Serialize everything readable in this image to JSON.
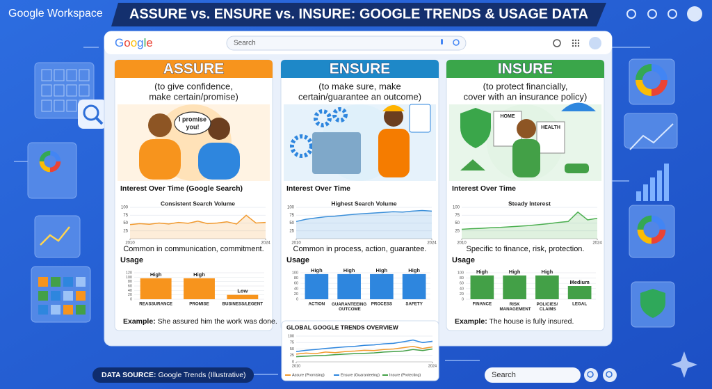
{
  "header": {
    "brand": "Google Workspace",
    "title": "ASSURE vs. ENSURE vs. INSURE: GOOGLE TRENDS & USAGE DATA"
  },
  "browser": {
    "logo": "Google",
    "search_placeholder": "Search"
  },
  "panels": [
    {
      "title": "ASSURE",
      "definition": [
        "(to give confidence,",
        "make certain/promise)"
      ],
      "illustration_texts": [
        "I promise",
        "you!"
      ],
      "caption": "Common in communication, commitment.",
      "example": {
        "label": "Example:",
        "text": "She assured him the work was done."
      }
    },
    {
      "title": "ENSURE",
      "definition": [
        "(to make sure, make",
        "certain/guarantee an outcome)"
      ],
      "illustration_texts": [],
      "caption": "Common in process, action, guarantee."
    },
    {
      "title": "INSURE",
      "definition": [
        "(to protect financially,",
        "cover with an insurance policy)"
      ],
      "illustration_texts": [
        "HOME",
        "HEALTH"
      ],
      "caption": "Specific to finance, risk, protection.",
      "example": {
        "label": "Example:",
        "text": "The house is fully insured."
      }
    }
  ],
  "chart_data": [
    {
      "type": "line",
      "title": "Interest Over Time (Google Search)",
      "subtitle": "Consistent Search Volume",
      "x": [
        2010,
        2011,
        2012,
        2013,
        2014,
        2015,
        2016,
        2017,
        2018,
        2019,
        2020,
        2021,
        2022,
        2023,
        2024
      ],
      "values": [
        45,
        48,
        46,
        50,
        47,
        52,
        49,
        56,
        48,
        50,
        54,
        47,
        75,
        50,
        52
      ],
      "color": "#f29a2e",
      "xlim": [
        2010,
        2024
      ],
      "xticks": [
        2010,
        2024
      ],
      "ylim": [
        0,
        100
      ],
      "yticks": [
        25,
        50,
        75,
        100
      ]
    },
    {
      "type": "bar",
      "title": "Usage",
      "categories": [
        "REASSURANCE",
        "PROMISE",
        "BUSINESS/LEGENT"
      ],
      "values": [
        95,
        95,
        20
      ],
      "value_labels": [
        "High",
        "High",
        "Low"
      ],
      "color": "#f7941d",
      "ylim": [
        0,
        120
      ],
      "yticks": [
        0,
        20,
        40,
        60,
        80,
        100,
        120
      ]
    },
    {
      "type": "line",
      "title": "Interest Over Time",
      "subtitle": "Highest Search Volume",
      "x": [
        2010,
        2011,
        2012,
        2013,
        2014,
        2015,
        2016,
        2017,
        2018,
        2019,
        2020,
        2021,
        2022,
        2023,
        2024
      ],
      "values": [
        55,
        62,
        66,
        70,
        72,
        75,
        78,
        80,
        82,
        84,
        86,
        85,
        88,
        90,
        88
      ],
      "color": "#3b8fd9",
      "xlim": [
        2010,
        2024
      ],
      "xticks": [
        2010,
        2024
      ],
      "ylim": [
        0,
        100
      ],
      "yticks": [
        25,
        50,
        75,
        100
      ]
    },
    {
      "type": "bar",
      "title": "Usage",
      "categories": [
        "ACTION",
        "GUARANTEEING OUTCOME",
        "PROCESS",
        "SAFETY"
      ],
      "values": [
        95,
        95,
        95,
        95
      ],
      "value_labels": [
        "High",
        "High",
        "High",
        "High"
      ],
      "color": "#2e86de",
      "ylim": [
        0,
        100
      ],
      "yticks": [
        0,
        20,
        40,
        60,
        80,
        100
      ]
    },
    {
      "type": "line",
      "title": "Interest Over Time",
      "subtitle": "Steady Interest",
      "x": [
        2010,
        2011,
        2012,
        2013,
        2014,
        2015,
        2016,
        2017,
        2018,
        2019,
        2020,
        2021,
        2022,
        2023,
        2024
      ],
      "values": [
        30,
        32,
        33,
        35,
        36,
        38,
        40,
        42,
        45,
        48,
        52,
        55,
        85,
        60,
        65
      ],
      "color": "#4caf50",
      "xlim": [
        2010,
        2024
      ],
      "xticks": [
        2010,
        2024
      ],
      "ylim": [
        0,
        100
      ],
      "yticks": [
        25,
        50,
        75,
        100
      ]
    },
    {
      "type": "bar",
      "title": "Usage",
      "categories": [
        "FINANCE",
        "RISK MANAGEMENT",
        "POLICIES/ CLAIMS",
        "LEGAL"
      ],
      "values": [
        90,
        90,
        90,
        50
      ],
      "value_labels": [
        "High",
        "High",
        "High",
        "Medium"
      ],
      "color": "#43a047",
      "ylim": [
        0,
        100
      ],
      "yticks": [
        0,
        20,
        40,
        60,
        80,
        100
      ]
    },
    {
      "type": "line",
      "title": "GLOBAL GOOGLE TRENDS OVERVIEW",
      "x": [
        2010,
        2011,
        2012,
        2013,
        2014,
        2015,
        2016,
        2017,
        2018,
        2019,
        2020,
        2021,
        2022,
        2023,
        2024
      ],
      "series": [
        {
          "name": "Assure (Promising)",
          "color": "#f29a2e",
          "values": [
            30,
            34,
            32,
            38,
            36,
            40,
            42,
            45,
            44,
            48,
            50,
            55,
            60,
            52,
            58
          ]
        },
        {
          "name": "Ensure (Guaranteeing)",
          "color": "#2e86de",
          "values": [
            40,
            45,
            48,
            52,
            55,
            58,
            60,
            64,
            66,
            70,
            72,
            78,
            85,
            75,
            80
          ]
        },
        {
          "name": "Insure (Protecting)",
          "color": "#43a047",
          "values": [
            20,
            22,
            24,
            25,
            28,
            30,
            32,
            33,
            35,
            38,
            40,
            42,
            48,
            44,
            50
          ]
        }
      ],
      "xlim": [
        2010,
        2024
      ],
      "xticks": [
        2010,
        2024
      ],
      "ylim": [
        0,
        100
      ],
      "yticks": [
        0,
        25,
        50,
        75,
        100
      ]
    }
  ],
  "footer": {
    "source_label": "DATA SOURCE:",
    "source_text": "Google Trends (Illustrative)",
    "search_placeholder": "Search"
  }
}
